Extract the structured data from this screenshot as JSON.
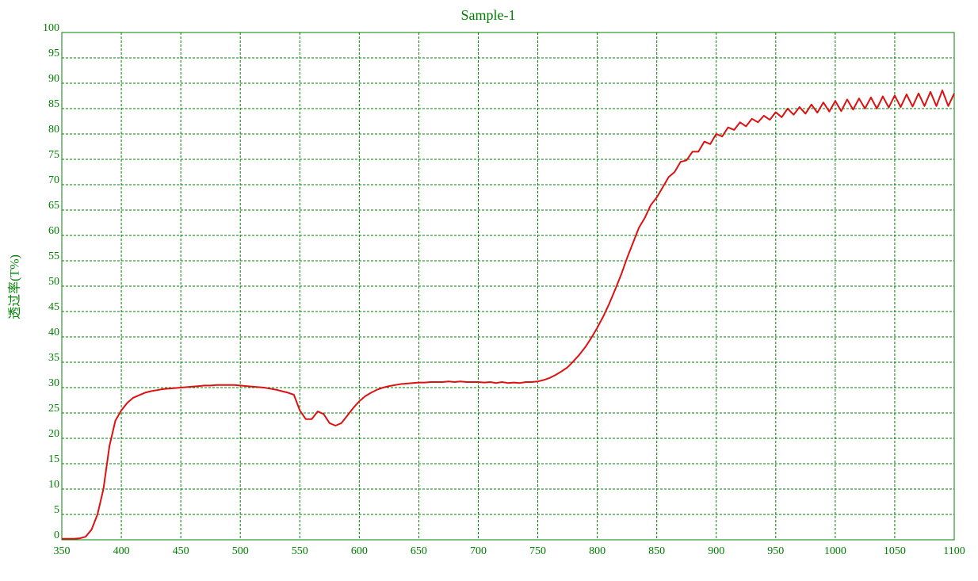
{
  "chart_data": {
    "type": "line",
    "title": "Sample-1",
    "y_label": "透过率(T%)",
    "x": [
      350,
      355,
      360,
      365,
      370,
      375,
      380,
      385,
      390,
      395,
      400,
      405,
      410,
      415,
      420,
      425,
      430,
      435,
      440,
      445,
      450,
      455,
      460,
      465,
      470,
      475,
      480,
      485,
      490,
      495,
      500,
      505,
      510,
      515,
      520,
      525,
      530,
      535,
      540,
      545,
      550,
      555,
      560,
      565,
      570,
      575,
      580,
      585,
      590,
      595,
      600,
      605,
      610,
      615,
      620,
      625,
      630,
      635,
      640,
      645,
      650,
      655,
      660,
      665,
      670,
      675,
      680,
      685,
      690,
      695,
      700,
      705,
      710,
      715,
      720,
      725,
      730,
      735,
      740,
      745,
      750,
      755,
      760,
      765,
      770,
      775,
      780,
      785,
      790,
      795,
      800,
      805,
      810,
      815,
      820,
      825,
      830,
      835,
      840,
      845,
      850,
      855,
      860,
      865,
      870,
      875,
      880,
      885,
      890,
      895,
      900,
      905,
      910,
      915,
      920,
      925,
      930,
      935,
      940,
      945,
      950,
      955,
      960,
      965,
      970,
      975,
      980,
      985,
      990,
      995,
      1000,
      1005,
      1010,
      1015,
      1020,
      1025,
      1030,
      1035,
      1040,
      1045,
      1050,
      1055,
      1060,
      1065,
      1070,
      1075,
      1080,
      1085,
      1090,
      1095,
      1100
    ],
    "values": [
      0.2,
      0.2,
      0.2,
      0.3,
      0.6,
      2,
      5,
      10,
      18.5,
      23.5,
      25.5,
      27,
      28,
      28.5,
      29,
      29.3,
      29.5,
      29.7,
      29.8,
      29.9,
      30,
      30.1,
      30.2,
      30.3,
      30.4,
      30.4,
      30.5,
      30.5,
      30.5,
      30.5,
      30.4,
      30.3,
      30.2,
      30.1,
      30,
      29.8,
      29.6,
      29.3,
      29.0,
      28.6,
      25.5,
      23.8,
      23.8,
      25.3,
      24.8,
      23.0,
      22.5,
      23,
      24.5,
      26,
      27.3,
      28.3,
      29,
      29.6,
      30,
      30.3,
      30.5,
      30.7,
      30.8,
      30.9,
      31,
      31,
      31.1,
      31.1,
      31.1,
      31.2,
      31.1,
      31.2,
      31.1,
      31.1,
      31.1,
      31,
      31.1,
      30.9,
      31.1,
      30.9,
      31,
      30.9,
      31.1,
      31.1,
      31.2,
      31.5,
      31.9,
      32.5,
      33.2,
      34,
      35.2,
      36.5,
      38,
      39.8,
      41.8,
      44,
      46.5,
      49.3,
      52.2,
      55.5,
      58.5,
      61.5,
      63.5,
      66,
      67.5,
      69.5,
      71.5,
      72.5,
      74.5,
      74.8,
      76.5,
      76.5,
      78.5,
      78,
      80,
      79.5,
      81.3,
      80.8,
      82.3,
      81.5,
      83,
      82.3,
      83.6,
      82.8,
      84.3,
      83.3,
      85,
      83.8,
      85.3,
      84,
      85.8,
      84.2,
      86.2,
      84.4,
      86.5,
      84.5,
      86.8,
      84.8,
      87,
      85,
      87.2,
      85,
      87.4,
      85.2,
      87.6,
      85.3,
      87.8,
      85.4,
      88,
      85.5,
      88.3,
      85.5,
      88.6,
      85.5,
      88
    ],
    "color": "#dd1111",
    "axis_color": "#008000",
    "xlim": [
      350,
      1100
    ],
    "xticks": [
      350,
      400,
      450,
      500,
      550,
      600,
      650,
      700,
      750,
      800,
      850,
      900,
      950,
      1000,
      1050,
      1100
    ],
    "ylim": [
      0,
      100
    ],
    "yticks": [
      0,
      5,
      10,
      15,
      20,
      25,
      30,
      35,
      40,
      45,
      50,
      55,
      60,
      65,
      70,
      75,
      80,
      85,
      90,
      95,
      100
    ],
    "grid": true
  }
}
